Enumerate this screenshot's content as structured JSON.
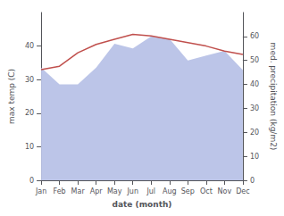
{
  "chart_data": {
    "type": "line",
    "xlabel": "date (month)",
    "ylabel": "max temp (C)",
    "y2label": "med. precipitation (kg/m2)",
    "categories": [
      "Jan",
      "Feb",
      "Mar",
      "Apr",
      "May",
      "Jun",
      "Jul",
      "Aug",
      "Sep",
      "Oct",
      "Nov",
      "Dec"
    ],
    "series": [
      {
        "type": "area",
        "color": "#bcc5e8",
        "axis": "y2",
        "values": [
          47,
          40,
          40,
          47,
          57,
          55,
          60,
          59,
          50,
          52,
          54,
          46
        ]
      },
      {
        "type": "line",
        "color": "#c0504d",
        "values": [
          33,
          34,
          38,
          40.5,
          42,
          43.5,
          43,
          42,
          41,
          40,
          38.5,
          37.5
        ]
      }
    ],
    "ylim": [
      0,
      50
    ],
    "yticks": [
      0,
      10,
      20,
      30,
      40
    ],
    "y2lim": [
      0,
      70
    ],
    "y2ticks": [
      0,
      10,
      20,
      30,
      40,
      50,
      60
    ],
    "grid": false
  }
}
